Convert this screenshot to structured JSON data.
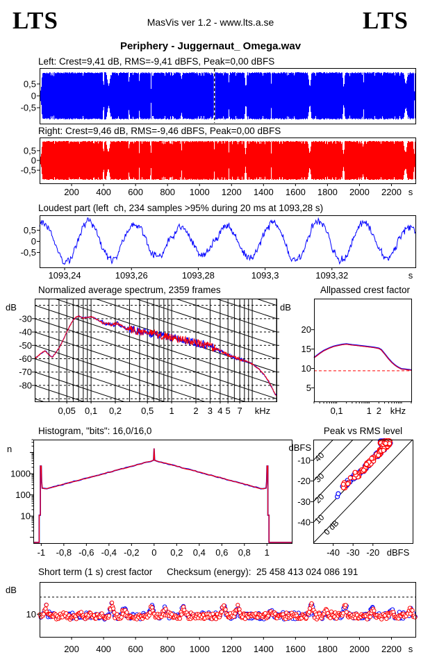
{
  "header": {
    "logo_left": "LTS",
    "center_text": "MasVis ver 1.2 - www.lts.a.se",
    "logo_right": "LTS"
  },
  "song_title": "Periphery - Juggernaut_ Omega.wav",
  "colors": {
    "left_channel": "#0000ff",
    "right_channel": "#ff0000",
    "axis": "#000000",
    "reference_dashed": "#ff0000"
  },
  "chart_data": {
    "left_wave": {
      "type": "area",
      "channel": "left",
      "label": "Left: Crest=9,41 dB, RMS=-9,41 dBFS, Peak=0,00 dBFS",
      "crest_db": 9.41,
      "rms_dbfs": -9.41,
      "peak_dbfs": 0.0,
      "x_range_s": [
        0,
        2350
      ],
      "y_range": [
        -1.17,
        1.17
      ],
      "yticks": [
        [
          0.5,
          "0,5"
        ],
        [
          0,
          "0"
        ],
        [
          -0.5,
          "-0,5"
        ]
      ],
      "marker_s": 1093.28,
      "quiet_sections": [
        [
          8,
          18,
          0.25
        ],
        [
          400,
          9,
          0.3
        ],
        [
          432,
          30,
          0.45
        ],
        [
          560,
          6,
          0.25
        ],
        [
          625,
          6,
          0.35
        ],
        [
          697,
          8,
          0.3
        ],
        [
          890,
          6,
          0.5
        ],
        [
          1090,
          5,
          0.6
        ],
        [
          1185,
          7,
          0.45
        ],
        [
          1290,
          15,
          0.35
        ],
        [
          1450,
          6,
          0.3
        ],
        [
          1690,
          22,
          0.4
        ],
        [
          1902,
          16,
          0.35
        ],
        [
          2025,
          6,
          0.4
        ],
        [
          2290,
          26,
          0.5
        ],
        [
          2343,
          8,
          0.15
        ]
      ]
    },
    "right_wave": {
      "type": "area",
      "channel": "right",
      "label": "Right: Crest=9,46 dB, RMS=-9,46 dBFS, Peak=0,00 dBFS",
      "crest_db": 9.46,
      "rms_dbfs": -9.46,
      "peak_dbfs": 0.0,
      "x_range_s": [
        0,
        2350
      ],
      "y_range": [
        -1.17,
        1.17
      ],
      "yticks": [
        [
          0.5,
          "0,5"
        ],
        [
          0,
          "0"
        ],
        [
          -0.5,
          "-0,5"
        ]
      ],
      "xticks": [
        [
          200,
          "200"
        ],
        [
          400,
          "400"
        ],
        [
          600,
          "600"
        ],
        [
          800,
          "800"
        ],
        [
          1000,
          "1000"
        ],
        [
          1200,
          "1200"
        ],
        [
          1400,
          "1400"
        ],
        [
          1600,
          "1600"
        ],
        [
          1800,
          "1800"
        ],
        [
          2000,
          "2000"
        ],
        [
          2200,
          "2200"
        ]
      ],
      "x_unit": "s",
      "quiet_sections": [
        [
          8,
          20,
          0.22
        ],
        [
          400,
          9,
          0.32
        ],
        [
          430,
          28,
          0.42
        ],
        [
          560,
          6,
          0.3
        ],
        [
          624,
          6,
          0.3
        ],
        [
          696,
          8,
          0.28
        ],
        [
          889,
          6,
          0.45
        ],
        [
          1092,
          5,
          0.55
        ],
        [
          1184,
          7,
          0.4
        ],
        [
          1288,
          15,
          0.38
        ],
        [
          1449,
          6,
          0.33
        ],
        [
          1689,
          23,
          0.38
        ],
        [
          1900,
          17,
          0.33
        ],
        [
          2024,
          6,
          0.38
        ],
        [
          2288,
          27,
          0.45
        ],
        [
          2342,
          9,
          0.18
        ]
      ]
    },
    "loudest": {
      "type": "line",
      "title": "Loudest part (left  ch, 234 samples >95% during 20 ms at 1093,28 s)",
      "channel": "left",
      "samples_over_95": 234,
      "window_ms": 20,
      "at_s": 1093.28,
      "x_range_s": [
        1093.2325,
        1093.345
      ],
      "y_range": [
        -1.17,
        1.17
      ],
      "yticks": [
        [
          0.5,
          "0,5"
        ],
        [
          0,
          "0"
        ],
        [
          -0.5,
          "-0,5"
        ]
      ],
      "xticks": [
        [
          1093.24,
          "1093,24"
        ],
        [
          1093.26,
          "1093,26"
        ],
        [
          1093.28,
          "1093,28"
        ],
        [
          1093.3,
          "1093,3"
        ],
        [
          1093.32,
          "1093,32"
        ]
      ],
      "x_unit": "s",
      "cycles": 8.2,
      "noise": 0.22
    },
    "spectrum": {
      "type": "line",
      "title": "Normalized average spectrum, 2359 frames",
      "frames": 2359,
      "ylabel": "dB",
      "ylabel_right": "dB",
      "x_range_khz": [
        0.02,
        20
      ],
      "y_range_db": [
        -92,
        -15
      ],
      "yticks": [
        [
          -30,
          "-30"
        ],
        [
          -40,
          "-40"
        ],
        [
          -50,
          "-50"
        ],
        [
          -60,
          "-60"
        ],
        [
          -70,
          "-70"
        ],
        [
          -80,
          "-80"
        ]
      ],
      "xticks": [
        [
          0.05,
          "0,05"
        ],
        [
          0.1,
          "0,1"
        ],
        [
          0.2,
          "0,2"
        ],
        [
          0.5,
          "0,5"
        ],
        [
          1,
          "1"
        ],
        [
          2,
          "2"
        ],
        [
          3,
          "3"
        ],
        [
          4,
          "4"
        ],
        [
          5,
          "5"
        ],
        [
          7,
          "7"
        ]
      ],
      "x_unit": "kHz",
      "grid_freqs": [
        0.02,
        0.03,
        0.04,
        0.05,
        0.06,
        0.07,
        0.08,
        0.09,
        0.1,
        0.2,
        0.3,
        0.4,
        0.5,
        0.6,
        0.7,
        0.8,
        0.9,
        1,
        2,
        3,
        4,
        5,
        6,
        7,
        8,
        9,
        10,
        20
      ],
      "hgrid_db": [
        -20,
        -30,
        -40,
        -50,
        -60,
        -70,
        -80,
        -90
      ],
      "diag_slope_db_per_decade": -20,
      "curve_db": [
        [
          0.02,
          -60
        ],
        [
          0.024,
          -56
        ],
        [
          0.027,
          -54
        ],
        [
          0.03,
          -57
        ],
        [
          0.033,
          -59
        ],
        [
          0.04,
          -52
        ],
        [
          0.045,
          -46
        ],
        [
          0.05,
          -40
        ],
        [
          0.055,
          -35
        ],
        [
          0.06,
          -31
        ],
        [
          0.065,
          -29
        ],
        [
          0.07,
          -28
        ],
        [
          0.08,
          -29.5
        ],
        [
          0.09,
          -29
        ],
        [
          0.1,
          -28.5
        ],
        [
          0.11,
          -29.5
        ],
        [
          0.13,
          -32
        ],
        [
          0.16,
          -34
        ],
        [
          0.2,
          -34.5
        ],
        [
          0.21,
          -33
        ],
        [
          0.25,
          -36.5
        ],
        [
          0.3,
          -38
        ],
        [
          0.4,
          -39.5
        ],
        [
          0.5,
          -40.5
        ],
        [
          0.6,
          -41.5
        ],
        [
          0.8,
          -43
        ],
        [
          1,
          -44
        ],
        [
          1.3,
          -45.5
        ],
        [
          1.7,
          -47
        ],
        [
          2,
          -48
        ],
        [
          2.5,
          -49
        ],
        [
          3,
          -50.5
        ],
        [
          3.5,
          -52.5
        ],
        [
          4,
          -54
        ],
        [
          4.5,
          -55.5
        ],
        [
          5,
          -57
        ],
        [
          6,
          -59
        ],
        [
          7,
          -60.5
        ],
        [
          8,
          -61.5
        ],
        [
          9,
          -62.5
        ],
        [
          10,
          -64
        ],
        [
          12,
          -67.5
        ],
        [
          14,
          -72
        ],
        [
          16,
          -77
        ],
        [
          18,
          -83
        ],
        [
          19.5,
          -87
        ],
        [
          20,
          -88
        ]
      ]
    },
    "allpassed": {
      "type": "line",
      "title": "Allpassed crest factor",
      "ylabel": "dB",
      "x_range_khz": [
        0.02,
        20
      ],
      "y_range_db": [
        1.5,
        28
      ],
      "yticks": [
        [
          20,
          "20"
        ],
        [
          15,
          "15"
        ],
        [
          10,
          "10"
        ],
        [
          5,
          "5"
        ]
      ],
      "xticks": [
        [
          0.1,
          "0,1"
        ],
        [
          1,
          "1"
        ],
        [
          2,
          "2"
        ]
      ],
      "x_unit": "kHz",
      "reference_db": 9.4,
      "curve_db": [
        [
          0.02,
          12.8
        ],
        [
          0.03,
          13.9
        ],
        [
          0.04,
          14.6
        ],
        [
          0.06,
          15.3
        ],
        [
          0.08,
          15.7
        ],
        [
          0.1,
          15.9
        ],
        [
          0.15,
          16.2
        ],
        [
          0.2,
          16.3
        ],
        [
          0.3,
          16.1
        ],
        [
          0.4,
          16.0
        ],
        [
          0.5,
          15.9
        ],
        [
          0.7,
          15.75
        ],
        [
          1,
          15.6
        ],
        [
          1.4,
          15.45
        ],
        [
          2,
          15.2
        ],
        [
          2.4,
          14.8
        ],
        [
          3,
          13.8
        ],
        [
          4,
          12.5
        ],
        [
          5,
          11.6
        ],
        [
          6,
          11.0
        ],
        [
          7,
          10.6
        ],
        [
          8,
          10.3
        ],
        [
          10,
          9.9
        ],
        [
          13,
          9.8
        ],
        [
          20,
          9.6
        ]
      ]
    },
    "histogram": {
      "type": "line",
      "title": "Histogram, \"bits\": 16,0/16,0",
      "bits_left": "16,0",
      "bits_right": "16,0",
      "ylabel": "n",
      "y_scale": "log",
      "x_range": [
        -1.07,
        1.22
      ],
      "n_range": [
        0.5,
        40000
      ],
      "yticks": [
        [
          1000,
          "1000"
        ],
        [
          100,
          "100"
        ],
        [
          10,
          "10"
        ]
      ],
      "xticks": [
        [
          -1,
          "-1"
        ],
        [
          -0.8,
          "-0,8"
        ],
        [
          -0.6,
          "-0,6"
        ],
        [
          -0.4,
          "-0,4"
        ],
        [
          -0.2,
          "-0,2"
        ],
        [
          0,
          "0"
        ],
        [
          0.2,
          "0,2"
        ],
        [
          0.4,
          "0,4"
        ],
        [
          0.6,
          "0,6"
        ],
        [
          0.8,
          "0,8"
        ],
        [
          1,
          "1"
        ]
      ],
      "shape": {
        "edge_spike_n": 2300,
        "valley_n": 195,
        "center_n": 4300,
        "center_spike_n": 15500,
        "step_n": 11,
        "floor_n": 0.55
      }
    },
    "peak_rms": {
      "type": "scatter",
      "title": "Peak vs RMS level",
      "ylabel": "dBFS",
      "x_unit": "dBFS",
      "x_range_dbfs": [
        -50,
        0
      ],
      "y_range_dbfs": [
        -50,
        0
      ],
      "yticks": [
        [
          -10,
          "-10"
        ],
        [
          -20,
          "-20"
        ],
        [
          -30,
          "-30"
        ],
        [
          -40,
          "-40"
        ]
      ],
      "xticks": [
        [
          -40,
          "-40"
        ],
        [
          -30,
          "-30"
        ],
        [
          -20,
          "-20"
        ]
      ],
      "isolines_db": [
        [
          0,
          "0 dB"
        ],
        [
          10,
          "10"
        ],
        [
          20,
          "20"
        ],
        [
          30,
          "30"
        ],
        [
          40,
          "40"
        ]
      ],
      "cluster": {
        "rms_min": -40,
        "rms_max": -11,
        "crest_db_typical": 10.5,
        "points_per_channel": 150
      }
    },
    "short_term": {
      "type": "scatter",
      "title": "Short term (1 s) crest factor",
      "checksum_label": "Checksum (energy):  25 458 413 024 086 191",
      "checksum_energy": "25 458 413 024 086 191",
      "ylabel": "dB",
      "x_range_s": [
        0,
        2350
      ],
      "y_range_db": [
        4,
        18.5
      ],
      "yticks": [
        [
          10,
          "10"
        ]
      ],
      "xticks": [
        [
          200,
          "200"
        ],
        [
          400,
          "400"
        ],
        [
          600,
          "600"
        ],
        [
          800,
          "800"
        ],
        [
          1000,
          "1000"
        ],
        [
          1200,
          "1200"
        ],
        [
          1400,
          "1400"
        ],
        [
          1600,
          "1600"
        ],
        [
          1800,
          "1800"
        ],
        [
          2000,
          "2000"
        ],
        [
          2200,
          "2200"
        ]
      ],
      "x_unit": "s",
      "reference_db": 14.5,
      "typical_db": 9.6,
      "bumps": [
        [
          40,
          2.5
        ],
        [
          450,
          4
        ],
        [
          530,
          2
        ],
        [
          700,
          3
        ],
        [
          780,
          2
        ],
        [
          900,
          2.5
        ],
        [
          1150,
          4.5
        ],
        [
          1240,
          3
        ],
        [
          1450,
          1.5
        ],
        [
          1700,
          4
        ],
        [
          1790,
          2
        ],
        [
          1910,
          3.5
        ],
        [
          2080,
          2.5
        ],
        [
          2200,
          1.5
        ],
        [
          2320,
          2.5
        ]
      ]
    }
  }
}
